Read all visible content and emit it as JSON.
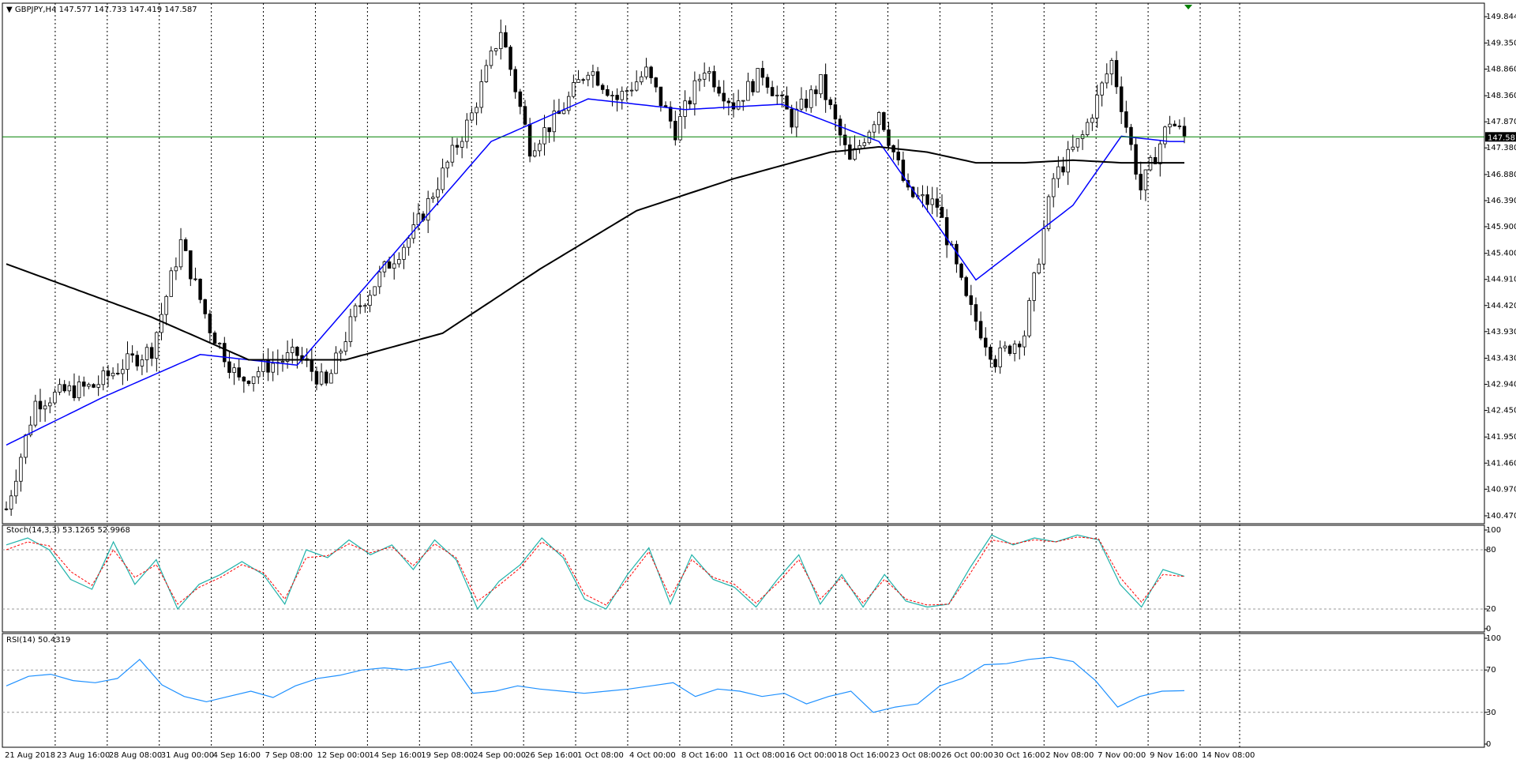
{
  "chart_data": {
    "type": "line",
    "main": {
      "symbol_label": "GBPJPY,H4",
      "ohlc": [
        "147.577",
        "147.733",
        "147.419",
        "147.587"
      ],
      "price_ticks": [
        "149.844",
        "149.350",
        "148.860",
        "148.360",
        "147.870",
        "147.380",
        "146.880",
        "146.390",
        "145.900",
        "145.400",
        "144.910",
        "144.420",
        "143.930",
        "143.430",
        "142.940",
        "142.450",
        "141.950",
        "141.460",
        "140.970",
        "140.470"
      ],
      "current_price": "147.587",
      "ylim": [
        140.47,
        149.95
      ],
      "x_count": 244,
      "series": [
        {
          "name": "Price",
          "x": [
            0,
            6,
            12,
            18,
            24,
            30,
            36,
            42,
            48,
            54,
            60,
            66,
            72,
            78,
            84,
            90,
            96,
            102,
            108,
            114,
            120,
            126,
            132,
            138,
            144,
            150,
            156,
            162,
            168,
            174,
            180,
            186,
            192,
            198,
            204,
            210,
            216,
            222,
            228,
            234,
            240,
            243
          ],
          "values": [
            140.6,
            142.6,
            142.8,
            142.9,
            143.3,
            143.6,
            145.6,
            144.0,
            143.0,
            143.3,
            143.5,
            142.9,
            144.3,
            145.1,
            145.8,
            146.9,
            148.0,
            149.6,
            147.4,
            148.0,
            148.9,
            148.3,
            148.8,
            147.7,
            148.9,
            148.2,
            148.8,
            147.9,
            148.6,
            147.1,
            148.1,
            146.5,
            146.3,
            144.5,
            143.4,
            143.9,
            146.8,
            147.6,
            149.0,
            146.6,
            147.9,
            147.59
          ]
        },
        {
          "name": "MA",
          "x": [
            0,
            20,
            40,
            60,
            80,
            100,
            120,
            140,
            160,
            180,
            200,
            220,
            230,
            240,
            243
          ],
          "values": [
            141.8,
            142.7,
            143.5,
            143.3,
            145.4,
            147.5,
            148.3,
            148.1,
            148.2,
            147.5,
            144.9,
            146.3,
            147.6,
            147.5,
            147.5
          ]
        },
        {
          "name": "MA",
          "x": [
            0,
            30,
            50,
            70,
            90,
            110,
            130,
            150,
            170,
            180,
            190,
            200,
            210,
            220,
            230,
            243
          ],
          "values": [
            145.2,
            144.2,
            143.4,
            143.4,
            143.9,
            145.1,
            146.2,
            146.8,
            147.3,
            147.4,
            147.3,
            147.1,
            147.1,
            147.15,
            147.1,
            147.1
          ]
        }
      ]
    },
    "stoch": {
      "label": "Stoch(14,3,3) 53.1265 52.9968",
      "ticks": [
        "100",
        "80",
        "20",
        "0"
      ],
      "levels": [
        80,
        20
      ],
      "values": [
        85,
        92,
        80,
        50,
        40,
        88,
        45,
        70,
        20,
        45,
        55,
        68,
        55,
        25,
        80,
        72,
        90,
        75,
        85,
        60,
        90,
        70,
        20,
        48,
        65,
        92,
        72,
        30,
        20,
        55,
        82,
        25,
        75,
        50,
        42,
        22,
        50,
        75,
        25,
        55,
        22,
        55,
        28,
        22,
        25,
        62,
        95,
        85,
        92,
        88,
        95,
        90,
        45,
        22,
        60,
        53.13
      ],
      "signal": [
        80,
        88,
        84,
        58,
        44,
        80,
        52,
        65,
        25,
        42,
        52,
        65,
        57,
        30,
        72,
        74,
        86,
        77,
        83,
        64,
        86,
        72,
        28,
        44,
        62,
        88,
        75,
        35,
        24,
        50,
        78,
        32,
        70,
        52,
        45,
        26,
        46,
        70,
        30,
        52,
        26,
        50,
        30,
        24,
        25,
        56,
        90,
        86,
        90,
        88,
        93,
        91,
        52,
        27,
        55,
        53.0
      ]
    },
    "rsi": {
      "label": "RSI(14) 50.4319",
      "ticks": [
        "100",
        "70",
        "30",
        "0"
      ],
      "levels": [
        70,
        30
      ],
      "values": [
        55,
        64,
        66,
        60,
        58,
        62,
        80,
        56,
        45,
        40,
        45,
        50,
        44,
        55,
        62,
        65,
        70,
        72,
        70,
        73,
        78,
        48,
        50,
        55,
        52,
        50,
        48,
        50,
        52,
        55,
        58,
        45,
        52,
        50,
        45,
        48,
        38,
        45,
        50,
        30,
        35,
        38,
        55,
        62,
        75,
        76,
        80,
        82,
        78,
        60,
        35,
        45,
        50,
        50.43
      ]
    },
    "time_labels": [
      "21 Aug 2018",
      "23 Aug 16:00",
      "28 Aug 08:00",
      "31 Aug 00:00",
      "4 Sep 16:00",
      "7 Sep 08:00",
      "12 Sep 00:00",
      "14 Sep 16:00",
      "19 Sep 08:00",
      "24 Sep 00:00",
      "26 Sep 16:00",
      "1 Oct 08:00",
      "4 Oct 00:00",
      "8 Oct 16:00",
      "11 Oct 08:00",
      "16 Oct 00:00",
      "18 Oct 16:00",
      "23 Oct 08:00",
      "26 Oct 00:00",
      "30 Oct 16:00",
      "2 Nov 08:00",
      "7 Nov 00:00",
      "9 Nov 16:00",
      "14 Nov 08:00"
    ],
    "colors": {
      "bull": "#ffffff",
      "bear": "#000000",
      "ma_fast": "#0000ff",
      "ma_slow": "#000000",
      "price_line": "#008000",
      "stoch_main": "#20b2aa",
      "stoch_signal": "#ff0000",
      "rsi": "#1e90ff",
      "grid": "#000000",
      "marker": "#008000"
    }
  }
}
